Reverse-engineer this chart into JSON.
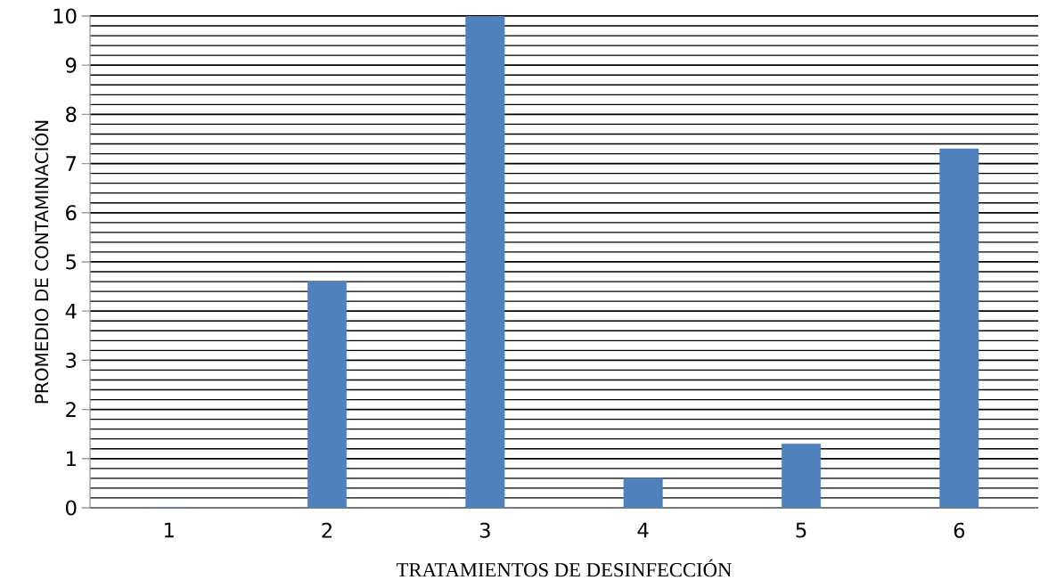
{
  "chart_data": {
    "type": "bar",
    "xlabel": "TRATAMIENTOS DE DESINFECCIÓN",
    "ylabel": "PROMEDIO DE CONTAMINACIÓN",
    "categories": [
      "1",
      "2",
      "3",
      "4",
      "5",
      "6"
    ],
    "values": [
      0,
      4.6,
      10,
      0.6,
      1.3,
      7.3
    ],
    "color": "#4f81bd",
    "ylim": [
      0,
      10
    ],
    "yticks": [
      0,
      1,
      2,
      3,
      4,
      5,
      6,
      7,
      8,
      9,
      10
    ],
    "grid": "y"
  }
}
